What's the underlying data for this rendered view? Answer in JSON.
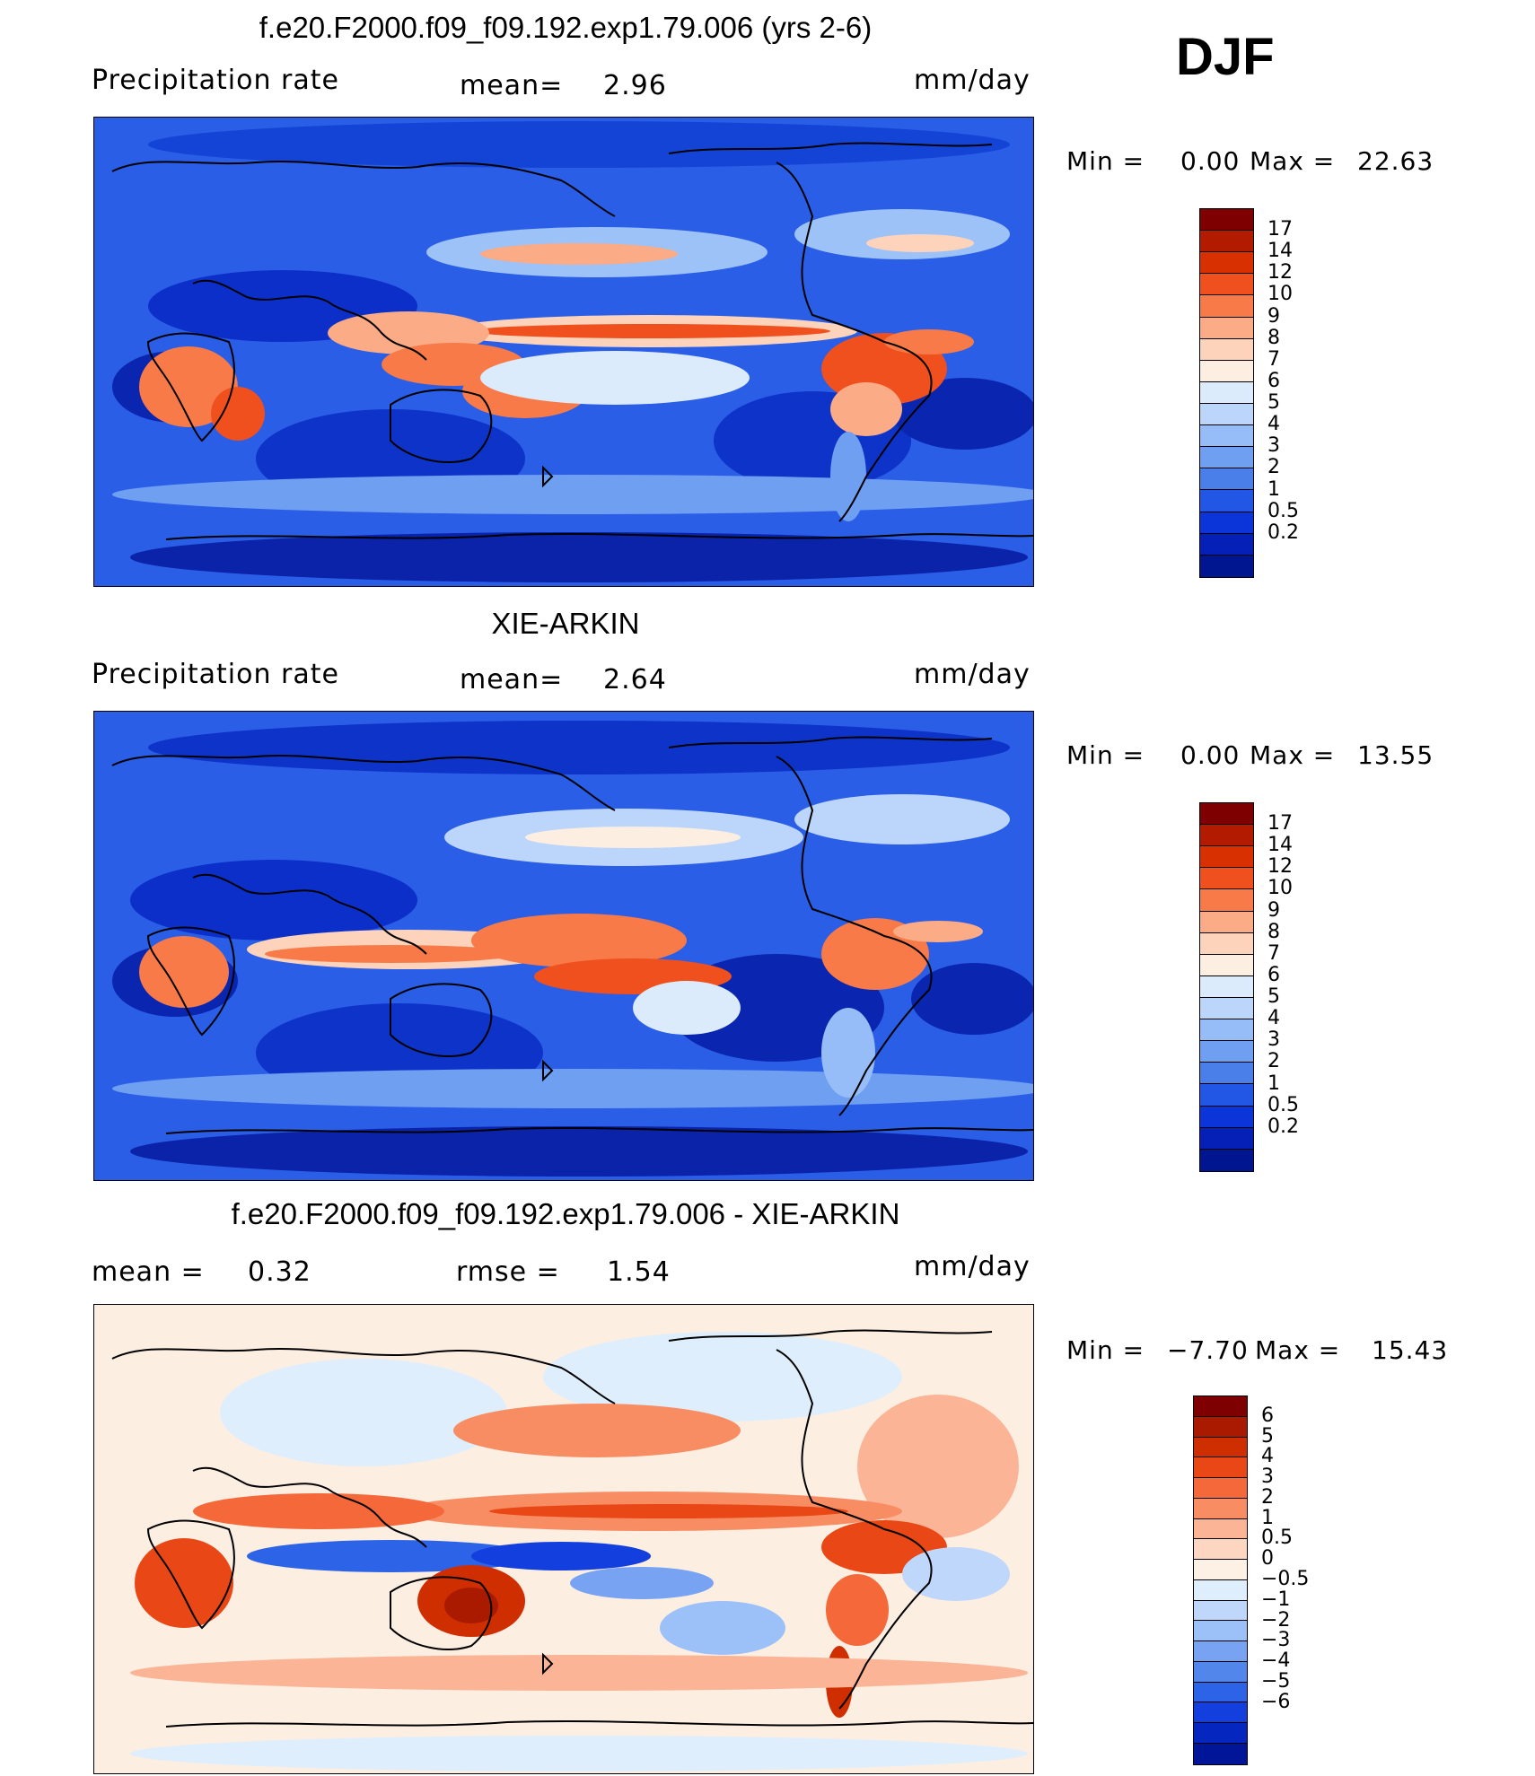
{
  "season": "DJF",
  "panels": [
    {
      "title": "f.e20.F2000.f09_f09.192.exp1.79.006 (yrs 2-6)",
      "left_label": "Precipitation  rate",
      "center_label": "mean=",
      "center_value": "2.96",
      "units": "mm/day",
      "min_label": "Min  =",
      "min_value": "0.00",
      "max_label": "Max  =",
      "max_value": "22.63",
      "colorbar": {
        "colors": [
          "#7f0000",
          "#b31b00",
          "#d83000",
          "#f0501d",
          "#f77a48",
          "#fbab85",
          "#fdd3bc",
          "#fdeee2",
          "#dcebfb",
          "#bcd6fb",
          "#96bdf8",
          "#6f9ff1",
          "#4a7fe9",
          "#2257e6",
          "#0b35d9",
          "#0520b6",
          "#001590"
        ],
        "ticks": [
          "17",
          "14",
          "12",
          "10",
          "9",
          "8",
          "7",
          "6",
          "5",
          "4",
          "3",
          "2",
          "1",
          "0.5",
          "0.2"
        ]
      }
    },
    {
      "title": "XIE-ARKIN",
      "left_label": "Precipitation  rate",
      "center_label": "mean=",
      "center_value": "2.64",
      "units": "mm/day",
      "min_label": "Min  =",
      "min_value": "0.00",
      "max_label": "Max  =",
      "max_value": "13.55",
      "colorbar": {
        "colors": [
          "#7f0000",
          "#b31b00",
          "#d83000",
          "#f0501d",
          "#f77a48",
          "#fbab85",
          "#fdd3bc",
          "#fdeee2",
          "#dcebfb",
          "#bcd6fb",
          "#96bdf8",
          "#6f9ff1",
          "#4a7fe9",
          "#2257e6",
          "#0b35d9",
          "#0520b6",
          "#001590"
        ],
        "ticks": [
          "17",
          "14",
          "12",
          "10",
          "9",
          "8",
          "7",
          "6",
          "5",
          "4",
          "3",
          "2",
          "1",
          "0.5",
          "0.2"
        ]
      }
    },
    {
      "title": "f.e20.F2000.f09_f09.192.exp1.79.006 - XIE-ARKIN",
      "left_label": "mean  =",
      "left_value": "0.32",
      "center_label": "rmse  =",
      "center_value": "1.54",
      "units": "mm/day",
      "min_label": "Min  =",
      "min_value": "−7.70",
      "max_label": "Max  =",
      "max_value": "15.43",
      "colorbar": {
        "colors": [
          "#7f0000",
          "#a91a00",
          "#cf2e00",
          "#ea4716",
          "#f4683a",
          "#f88d64",
          "#fbb496",
          "#fdd6c2",
          "#fdf0e4",
          "#dfeefc",
          "#bfd7fb",
          "#9cc0f8",
          "#77a3f2",
          "#5386ea",
          "#2d63e6",
          "#123fdd",
          "#0526bf",
          "#001598"
        ],
        "ticks": [
          "6",
          "5",
          "4",
          "3",
          "2",
          "1",
          "0.5",
          "0",
          "−0.5",
          "−1",
          "−2",
          "−3",
          "−4",
          "−5",
          "−6"
        ]
      }
    }
  ]
}
